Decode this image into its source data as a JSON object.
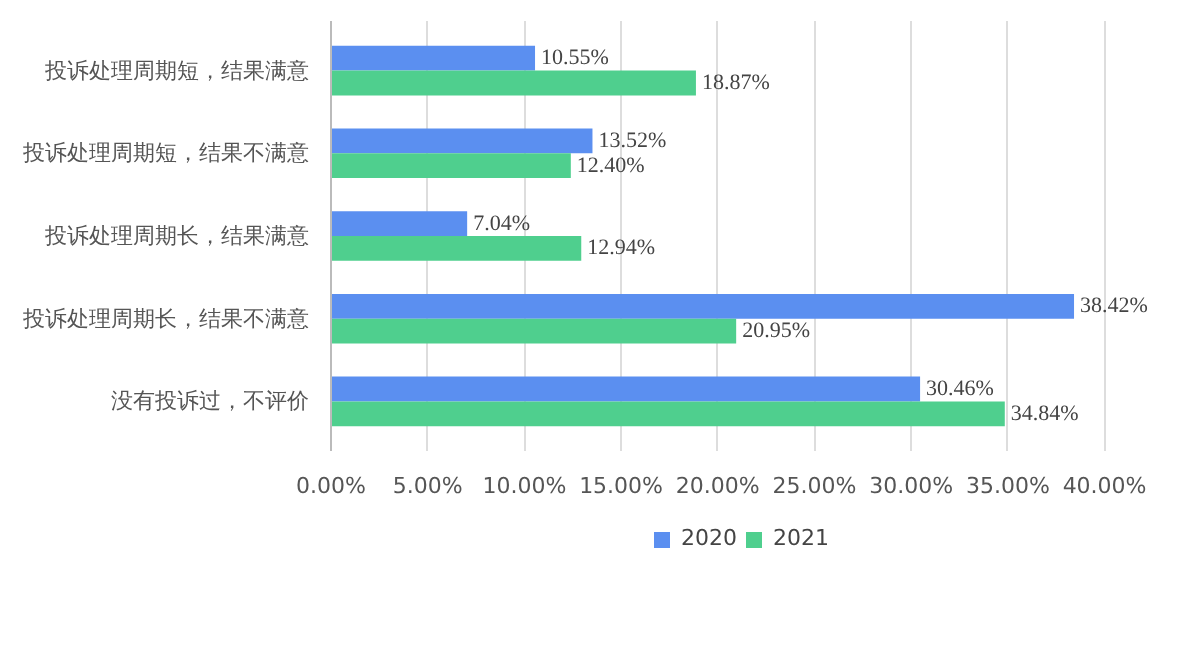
{
  "chart_data": {
    "type": "bar",
    "orientation": "horizontal",
    "categories": [
      "投诉处理周期短，结果满意",
      "投诉处理周期短，结果不满意",
      "投诉处理周期长，结果满意",
      "投诉处理周期长，结果不满意",
      "没有投诉过，不评价"
    ],
    "series": [
      {
        "name": "2020",
        "color": "#5b8ff0",
        "values": [
          10.55,
          13.52,
          7.04,
          38.42,
          30.46
        ],
        "value_labels": [
          "10.55%",
          "13.52%",
          "7.04%",
          "38.42%",
          "30.46%"
        ]
      },
      {
        "name": "2021",
        "color": "#4fcf8e",
        "values": [
          18.87,
          12.4,
          12.94,
          20.95,
          34.84
        ],
        "value_labels": [
          "18.87%",
          "12.40%",
          "12.94%",
          "20.95%",
          "34.84%"
        ]
      }
    ],
    "xlim": [
      0,
      40
    ],
    "xticks": [
      {
        "value": 0,
        "label": "0.00%"
      },
      {
        "value": 5,
        "label": "5.00%"
      },
      {
        "value": 10,
        "label": "10.00%"
      },
      {
        "value": 15,
        "label": "15.00%"
      },
      {
        "value": 20,
        "label": "20.00%"
      },
      {
        "value": 25,
        "label": "25.00%"
      },
      {
        "value": 30,
        "label": "30.00%"
      },
      {
        "value": 35,
        "label": "35.00%"
      },
      {
        "value": 40,
        "label": "40.00%"
      }
    ],
    "grid": "x",
    "legend": "bottom"
  }
}
